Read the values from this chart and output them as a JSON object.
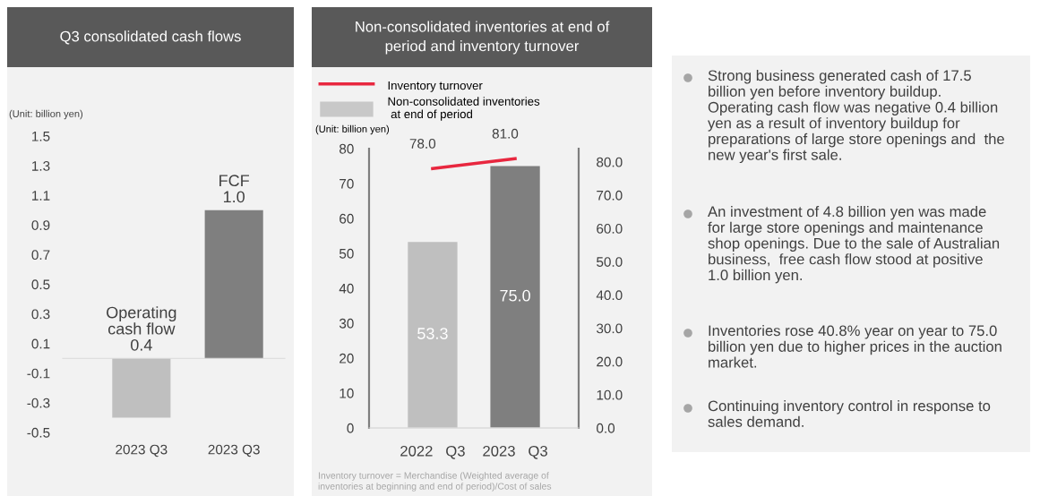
{
  "chart_data": [
    {
      "type": "bar",
      "title": "Q3 consolidated cash flows",
      "categories": [
        "2023 Q3",
        "2023 Q3"
      ],
      "values": [
        -0.4,
        1.0
      ],
      "colors": [
        "#bfbfbf",
        "#7f7f7f"
      ],
      "value_labels": [
        "Operating\ncash flow\n0.4",
        "FCF\n1.0"
      ],
      "ylim": [
        -0.5,
        1.5
      ],
      "yticks": [
        1.5,
        1.3,
        1.1,
        0.9,
        0.7,
        0.5,
        0.3,
        0.1,
        -0.1,
        -0.3,
        -0.5
      ],
      "annotations": [
        "(Unit: billion yen)"
      ],
      "grid": false
    },
    {
      "type": "bar",
      "title": "Non-consolidated inventories at end of\nperiod and inventory turnover",
      "categories": [
        "2022   Q3",
        "2023   Q3"
      ],
      "series": [
        {
          "name": "Non-consolidated inventories\n at end of period",
          "type": "bar",
          "color": "#c8c8c8",
          "colors": [
            "#bfbfbf",
            "#7f7f7f"
          ],
          "values": [
            53.3,
            75.0
          ],
          "value_labels": [
            "53.3",
            "75.0"
          ]
        },
        {
          "name": "Inventory turnover",
          "type": "line",
          "axis": "y2",
          "color": "#e8273f",
          "values": [
            78.0,
            81.0
          ],
          "value_labels": [
            "78.0",
            "81.0"
          ]
        }
      ],
      "ylim": [
        0,
        80
      ],
      "yticks": [
        0,
        10,
        20,
        30,
        40,
        50,
        60,
        70,
        80
      ],
      "y2lim": [
        0,
        84
      ],
      "y2ticks": [
        {
          "value": 0,
          "label": "0.0"
        },
        {
          "value": 10,
          "label": "10.0"
        },
        {
          "value": 20,
          "label": "20.0"
        },
        {
          "value": 30,
          "label": "30.0"
        },
        {
          "value": 40,
          "label": "40.0"
        },
        {
          "value": 50,
          "label": "50.0"
        },
        {
          "value": 60,
          "label": "60.0"
        },
        {
          "value": 70,
          "label": "70.0"
        },
        {
          "value": 80,
          "label": "80.0"
        }
      ],
      "legend": "top left",
      "grid": false,
      "marker": "none",
      "annotations": [
        "(Unit: billion yen)",
        "Inventory turnover = Merchandise (Weighted average of\ninventories at beginning and end of period)/Cost of sales"
      ]
    },
    {
      "type": "other",
      "annotations": [
        "Strong business generated cash of 17.5\nbillion yen before inventory buildup.\nOperating cash flow was negative 0.4 billion\nyen as a result of inventory buildup for\npreparations of large store openings and  the\nnew year's first sale.",
        "An investment of 4.8 billion yen was made\nfor large store openings and maintenance\nshop openings. Due to the sale of Australian\nbusiness,  free cash flow stood at positive\n1.0 billion yen.",
        "Inventories rose 40.8% year on year to 75.0\nbillion yen due to higher prices in the auction\nmarket.",
        "Continuing inventory control in response to\nsales demand."
      ]
    }
  ]
}
